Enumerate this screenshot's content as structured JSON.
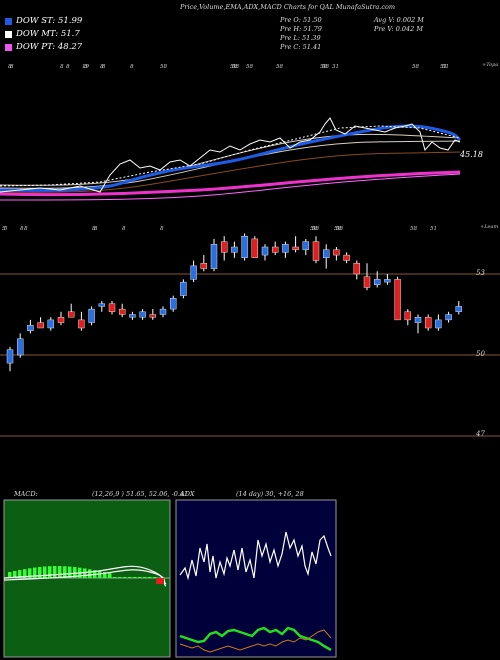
{
  "header": {
    "title": "Price,Volume,EMA,ADX,MACD Charts for QAL MunafaSutra.com",
    "legend": [
      {
        "label": "DOW ST: 51.99",
        "color": "#1e5ce6"
      },
      {
        "label": "DOW MT: 51.7",
        "color": "#ffffff"
      },
      {
        "label": "DOW PT: 48.27",
        "color": "#ee55ee"
      }
    ],
    "stats_col1": [
      "Pre O: 51.50",
      "Pre H: 51.79",
      "Pre L: 51.39",
      "Pre C: 51.41"
    ],
    "stats_col2": [
      "Avg V: 0.002 M",
      "Pre V: 0.042 M"
    ]
  },
  "top_panel": {
    "corner_label": "+Topa",
    "last_value_label": "45.18",
    "tick_labels": [
      "8",
      "8",
      "8",
      "8",
      "19",
      "8",
      "8",
      "8",
      "8",
      "58",
      "58",
      "58",
      "58",
      "58",
      "58",
      "58",
      "31",
      "58",
      "51",
      "51"
    ]
  },
  "candle_panel": {
    "corner_label": "+Leam",
    "tick_labels": [
      "5",
      "5",
      "8",
      "8",
      "8",
      "8",
      "8",
      "8",
      "58",
      "58",
      "58",
      "58",
      "58",
      "51"
    ],
    "price_levels": [
      {
        "label": "53",
        "value": 53
      },
      {
        "label": "50",
        "value": 50
      },
      {
        "label": "47",
        "value": 47
      }
    ]
  },
  "macd_panel": {
    "title": "MACD:",
    "params": "(12,26,9 ) 51.65, 52.06, -0.41"
  },
  "adx_panel": {
    "title": "ADX",
    "params": "(14 day) 30, +16, 28"
  },
  "chart_data": {
    "type": "candlestick",
    "y_levels": [
      53,
      50,
      47
    ],
    "ema_values": {
      "dow_st": 51.99,
      "dow_mt": 51.7,
      "dow_pt": 48.27,
      "last_shown": 45.18
    },
    "candles": [
      {
        "o": 49.7,
        "h": 50.3,
        "l": 49.4,
        "c": 50.2
      },
      {
        "o": 50.0,
        "h": 50.8,
        "l": 49.9,
        "c": 50.6
      },
      {
        "o": 50.9,
        "h": 51.3,
        "l": 50.8,
        "c": 51.1
      },
      {
        "o": 51.2,
        "h": 51.4,
        "l": 51.0,
        "c": 51.0
      },
      {
        "o": 51.0,
        "h": 51.4,
        "l": 50.9,
        "c": 51.3
      },
      {
        "o": 51.4,
        "h": 51.6,
        "l": 51.1,
        "c": 51.2
      },
      {
        "o": 51.6,
        "h": 51.9,
        "l": 51.4,
        "c": 51.4
      },
      {
        "o": 51.3,
        "h": 51.6,
        "l": 50.9,
        "c": 51.0
      },
      {
        "o": 51.2,
        "h": 51.8,
        "l": 51.1,
        "c": 51.7
      },
      {
        "o": 51.8,
        "h": 52.0,
        "l": 51.6,
        "c": 51.9
      },
      {
        "o": 51.9,
        "h": 52.0,
        "l": 51.5,
        "c": 51.6
      },
      {
        "o": 51.7,
        "h": 51.9,
        "l": 51.4,
        "c": 51.5
      },
      {
        "o": 51.4,
        "h": 51.6,
        "l": 51.3,
        "c": 51.5
      },
      {
        "o": 51.4,
        "h": 51.7,
        "l": 51.3,
        "c": 51.6
      },
      {
        "o": 51.5,
        "h": 51.7,
        "l": 51.3,
        "c": 51.4
      },
      {
        "o": 51.5,
        "h": 51.8,
        "l": 51.4,
        "c": 51.7
      },
      {
        "o": 51.7,
        "h": 52.2,
        "l": 51.6,
        "c": 52.1
      },
      {
        "o": 52.2,
        "h": 52.8,
        "l": 52.1,
        "c": 52.7
      },
      {
        "o": 52.8,
        "h": 53.5,
        "l": 52.7,
        "c": 53.3
      },
      {
        "o": 53.4,
        "h": 53.7,
        "l": 53.1,
        "c": 53.2
      },
      {
        "o": 53.2,
        "h": 54.3,
        "l": 53.1,
        "c": 54.1
      },
      {
        "o": 54.2,
        "h": 54.4,
        "l": 53.5,
        "c": 53.8
      },
      {
        "o": 53.8,
        "h": 54.2,
        "l": 53.6,
        "c": 54.0
      },
      {
        "o": 53.6,
        "h": 54.5,
        "l": 53.5,
        "c": 54.4
      },
      {
        "o": 54.3,
        "h": 54.4,
        "l": 53.6,
        "c": 53.6
      },
      {
        "o": 53.7,
        "h": 54.1,
        "l": 53.5,
        "c": 54.0
      },
      {
        "o": 54.0,
        "h": 54.2,
        "l": 53.7,
        "c": 53.8
      },
      {
        "o": 53.8,
        "h": 54.2,
        "l": 53.6,
        "c": 54.1
      },
      {
        "o": 54.0,
        "h": 54.4,
        "l": 53.8,
        "c": 53.9
      },
      {
        "o": 53.9,
        "h": 54.3,
        "l": 53.7,
        "c": 54.2
      },
      {
        "o": 54.2,
        "h": 54.4,
        "l": 53.4,
        "c": 53.5
      },
      {
        "o": 53.6,
        "h": 54.1,
        "l": 53.2,
        "c": 53.9
      },
      {
        "o": 53.9,
        "h": 54.0,
        "l": 53.5,
        "c": 53.7
      },
      {
        "o": 53.7,
        "h": 53.8,
        "l": 53.4,
        "c": 53.5
      },
      {
        "o": 53.4,
        "h": 53.5,
        "l": 52.8,
        "c": 53.0
      },
      {
        "o": 52.9,
        "h": 53.4,
        "l": 52.4,
        "c": 52.5
      },
      {
        "o": 52.6,
        "h": 53.1,
        "l": 52.5,
        "c": 52.8
      },
      {
        "o": 52.7,
        "h": 53.0,
        "l": 52.6,
        "c": 52.8
      },
      {
        "o": 52.8,
        "h": 52.9,
        "l": 51.3,
        "c": 51.3
      },
      {
        "o": 51.6,
        "h": 51.7,
        "l": 51.1,
        "c": 51.3
      },
      {
        "o": 51.2,
        "h": 51.5,
        "l": 50.8,
        "c": 51.4
      },
      {
        "o": 51.4,
        "h": 51.5,
        "l": 50.9,
        "c": 51.0
      },
      {
        "o": 51.0,
        "h": 51.5,
        "l": 50.9,
        "c": 51.3
      },
      {
        "o": 51.3,
        "h": 51.6,
        "l": 51.2,
        "c": 51.5
      },
      {
        "o": 51.6,
        "h": 52.0,
        "l": 51.5,
        "c": 51.8
      }
    ],
    "macd_panel": {
      "macd": 51.65,
      "signal": 52.06,
      "histogram": -0.41
    },
    "adx_panel": {
      "adx": 30,
      "plus_di": 16,
      "minus_di": 28
    }
  },
  "colors": {
    "up": "#2a6fe0",
    "down": "#e02020",
    "ema_short": "#1e5ce6",
    "ema_long": "#ee33cc",
    "level_line": "#8a5a2a",
    "macd_bg": "#0b5e12",
    "adx_bg": "#00003a"
  }
}
